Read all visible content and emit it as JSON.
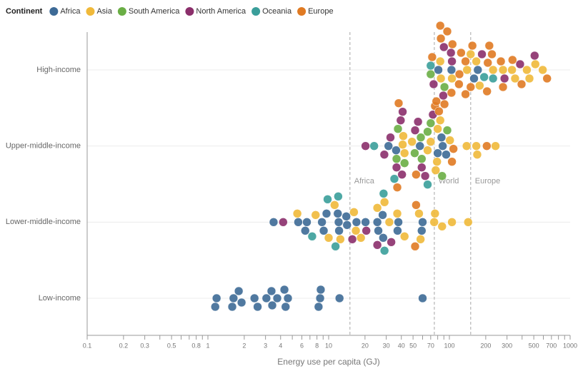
{
  "chart_data": {
    "type": "beeswarm",
    "legend_title": "Continent",
    "x_label": "Energy use per capita (GJ)",
    "xscale": "log",
    "xlim": [
      0.1,
      1000
    ],
    "xticks": [
      0.1,
      0.2,
      0.3,
      0.5,
      0.8,
      1,
      2,
      3,
      4,
      6,
      8,
      10,
      20,
      30,
      40,
      50,
      70,
      100,
      200,
      300,
      500,
      700,
      1000
    ],
    "xminor_ticks": [
      0.4,
      0.6,
      0.7,
      0.9,
      5,
      7,
      9,
      60,
      80,
      90,
      400,
      600,
      800,
      900
    ],
    "categories": [
      "High-income",
      "Upper-middle-income",
      "Lower-middle-income",
      "Low-income"
    ],
    "grid": true,
    "reference_lines": [
      {
        "label": "Africa",
        "value": 15
      },
      {
        "label": "World",
        "value": 75
      },
      {
        "label": "Europe",
        "value": 150
      }
    ],
    "series": [
      {
        "name": "Africa",
        "color": "#3d6a96",
        "x": [
          1.18,
          1.15,
          1.63,
          1.59,
          1.9,
          1.8,
          2.43,
          2.58,
          3.05,
          3.41,
          3.36,
          3.75,
          4.6,
          4.4,
          4.3,
          8.5,
          8.25,
          8.6,
          12.3,
          60,
          3.5,
          5.6,
          6.6,
          6.4,
          8.8,
          9.1,
          9.6,
          12.1,
          12.2,
          11.9,
          14.2,
          14,
          17,
          20.2,
          25.3,
          25.8,
          28,
          28.3,
          37.8,
          37.2,
          60,
          59,
          31.3,
          36.2,
          57,
          88,
          94,
          80,
          86,
          172,
          104,
          81,
          160
        ],
        "y": [
          "Low-income",
          "Low-income",
          "Low-income",
          "Low-income",
          "Low-income",
          "Low-income",
          "Low-income",
          "Low-income",
          "Low-income",
          "Low-income",
          "Low-income",
          "Low-income",
          "Low-income",
          "Low-income",
          "Low-income",
          "Low-income",
          "Low-income",
          "Low-income",
          "Low-income",
          "Low-income",
          "Lower-middle-income",
          "Lower-middle-income",
          "Lower-middle-income",
          "Lower-middle-income",
          "Lower-middle-income",
          "Lower-middle-income",
          "Lower-middle-income",
          "Lower-middle-income",
          "Lower-middle-income",
          "Lower-middle-income",
          "Lower-middle-income",
          "Lower-middle-income",
          "Lower-middle-income",
          "Lower-middle-income",
          "Lower-middle-income",
          "Lower-middle-income",
          "Lower-middle-income",
          "Lower-middle-income",
          "Lower-middle-income",
          "Lower-middle-income",
          "Lower-middle-income",
          "Lower-middle-income",
          "Upper-middle-income",
          "Upper-middle-income",
          "Upper-middle-income",
          "Upper-middle-income",
          "Upper-middle-income",
          "Upper-middle-income",
          "Upper-middle-income",
          "High-income",
          "High-income",
          "High-income",
          "High-income"
        ]
      },
      {
        "name": "Asia",
        "color": "#f0b93a",
        "x": [
          5.5,
          7.8,
          10,
          11.2,
          12.5,
          16.8,
          16.2,
          18.5,
          25.3,
          31.8,
          29,
          37,
          42.5,
          56,
          57.7,
          74.8,
          87,
          105,
          143,
          76,
          41,
          42.5,
          49,
          66,
          70,
          79,
          80,
          77,
          101,
          84,
          139,
          167,
          170,
          241,
          41.5,
          140,
          167,
          278,
          230,
          330,
          438,
          460,
          593,
          515,
          178,
          105,
          85,
          84,
          150,
          350
        ],
        "y": [
          "Lower-middle-income",
          "Lower-middle-income",
          "Lower-middle-income",
          "Lower-middle-income",
          "Lower-middle-income",
          "Lower-middle-income",
          "Lower-middle-income",
          "Lower-middle-income",
          "Lower-middle-income",
          "Lower-middle-income",
          "Lower-middle-income",
          "Lower-middle-income",
          "Lower-middle-income",
          "Lower-middle-income",
          "Lower-middle-income",
          "Lower-middle-income",
          "Lower-middle-income",
          "Lower-middle-income",
          "Lower-middle-income",
          "Lower-middle-income",
          "Upper-middle-income",
          "Upper-middle-income",
          "Upper-middle-income",
          "Upper-middle-income",
          "Upper-middle-income",
          "Upper-middle-income",
          "Upper-middle-income",
          "Upper-middle-income",
          "Upper-middle-income",
          "Upper-middle-income",
          "Upper-middle-income",
          "Upper-middle-income",
          "Upper-middle-income",
          "Upper-middle-income",
          "Upper-middle-income",
          "High-income",
          "High-income",
          "High-income",
          "High-income",
          "High-income",
          "High-income",
          "High-income",
          "High-income",
          "High-income",
          "High-income",
          "High-income",
          "High-income",
          "High-income",
          "High-income",
          "High-income"
        ]
      },
      {
        "name": "South America",
        "color": "#6aae45",
        "x": [
          36.5,
          42.5,
          37.5,
          51.6,
          58,
          59,
          70,
          66,
          87,
          96,
          91,
          70
        ],
        "y": [
          "Upper-middle-income",
          "Upper-middle-income",
          "Upper-middle-income",
          "Upper-middle-income",
          "Upper-middle-income",
          "Upper-middle-income",
          "Upper-middle-income",
          "Upper-middle-income",
          "Upper-middle-income",
          "Upper-middle-income",
          "High-income",
          "High-income"
        ]
      },
      {
        "name": "North America",
        "color": "#8b2f6b",
        "x": [
          4.2,
          15.7,
          20.5,
          25.3,
          33,
          20.2,
          28.9,
          32.5,
          36.5,
          39.5,
          40.5,
          41,
          52,
          59,
          63,
          55,
          73,
          105,
          103,
          74,
          90,
          186,
          286,
          385,
          508,
          89
        ],
        "y": [
          "Lower-middle-income",
          "Lower-middle-income",
          "Lower-middle-income",
          "Lower-middle-income",
          "Lower-middle-income",
          "Upper-middle-income",
          "Upper-middle-income",
          "Upper-middle-income",
          "Upper-middle-income",
          "Upper-middle-income",
          "Upper-middle-income",
          "Upper-middle-income",
          "Upper-middle-income",
          "Upper-middle-income",
          "Upper-middle-income",
          "Upper-middle-income",
          "Upper-middle-income",
          "High-income",
          "High-income",
          "High-income",
          "High-income",
          "High-income",
          "High-income",
          "High-income",
          "High-income",
          "High-income"
        ]
      },
      {
        "name": "Oceania",
        "color": "#3a9e9a",
        "x": [
          7.3,
          9.8,
          11.4,
          12,
          28.5,
          29,
          23.8,
          35,
          66,
          70,
          194,
          230
        ],
        "y": [
          "Lower-middle-income",
          "Lower-middle-income",
          "Lower-middle-income",
          "Lower-middle-income",
          "Lower-middle-income",
          "Lower-middle-income",
          "Upper-middle-income",
          "Upper-middle-income",
          "Upper-middle-income",
          "High-income",
          "High-income",
          "High-income"
        ]
      },
      {
        "name": "Europe",
        "color": "#e07a22",
        "x": [
          53,
          52,
          53,
          37,
          38,
          76,
          105,
          108,
          204,
          85,
          91,
          96,
          104,
          120,
          136,
          150,
          155,
          208,
          225,
          333,
          267,
          396,
          644,
          278,
          205,
          82,
          72,
          78,
          106,
          136,
          121,
          125,
          214,
          84
        ],
        "y": [
          "Lower-middle-income",
          "Lower-middle-income",
          "Upper-middle-income",
          "Upper-middle-income",
          "Upper-middle-income",
          "Upper-middle-income",
          "Upper-middle-income",
          "Upper-middle-income",
          "Upper-middle-income",
          "High-income",
          "High-income",
          "High-income",
          "High-income",
          "High-income",
          "High-income",
          "High-income",
          "High-income",
          "High-income",
          "High-income",
          "High-income",
          "High-income",
          "High-income",
          "High-income",
          "High-income",
          "High-income",
          "High-income",
          "High-income",
          "High-income",
          "High-income",
          "High-income",
          "High-income",
          "High-income",
          "High-income",
          "High-income"
        ]
      }
    ]
  }
}
